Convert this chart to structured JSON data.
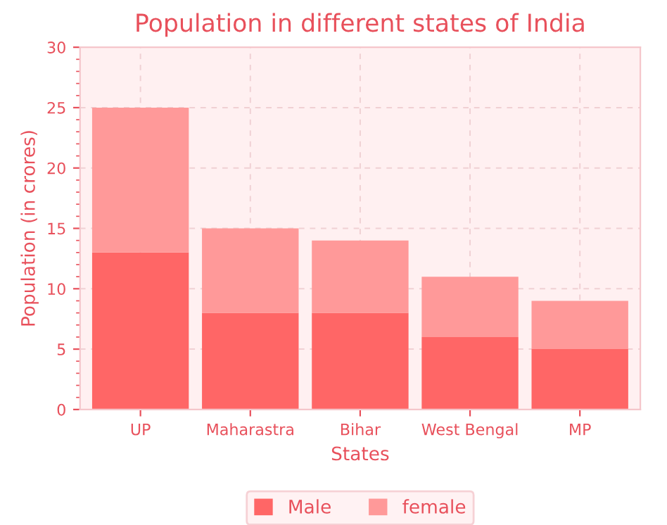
{
  "chart_data": {
    "type": "bar",
    "title": "Population in different states of India",
    "xlabel": "States",
    "ylabel": "Population (in crores)",
    "categories": [
      "UP",
      "Maharastra",
      "Bihar",
      "West Bengal",
      "MP"
    ],
    "series": [
      {
        "name": "Male",
        "color": "#ff6666",
        "values": [
          13,
          8,
          8,
          6,
          5
        ]
      },
      {
        "name": "female",
        "color": "#ff9999",
        "values": [
          12,
          7,
          6,
          5,
          4
        ]
      }
    ],
    "stacked": true,
    "ylim": [
      0,
      30
    ],
    "yticks": [
      0,
      5,
      10,
      15,
      20,
      25,
      30
    ],
    "grid": true,
    "legend": "bottom"
  }
}
